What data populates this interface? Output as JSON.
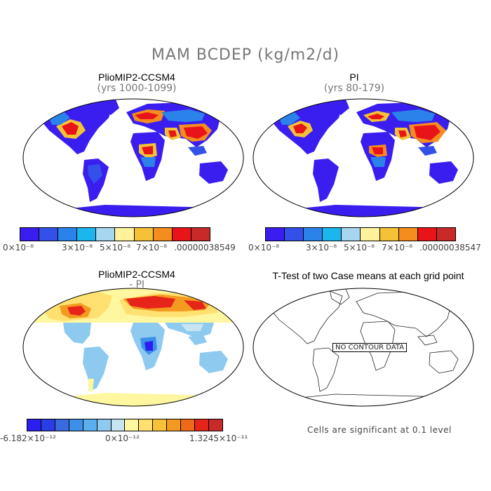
{
  "title": "MAM BCDEP (kg/m2/d)",
  "panels": {
    "p1": {
      "title": "PlioMIP2-CCSM4",
      "subtitle": "(yrs 1000-1099)"
    },
    "p2": {
      "title": "PI",
      "subtitle": "(yrs 80-179)"
    },
    "p3": {
      "title": "PlioMIP2-CCSM4",
      "subtitle": "- PI"
    },
    "p4": {
      "title": "T-Test of two Case means at each grid point",
      "nodata": "NO CONTOUR DATA",
      "note": "Cells are significant at 0.1 level"
    }
  },
  "colorbars": {
    "cb1": {
      "colors": [
        "#3a1ef0",
        "#3350e8",
        "#2a82ea",
        "#1cb6ee",
        "#a6d6f0",
        "#fff29a",
        "#f5c237",
        "#f58c1e",
        "#e8141a",
        "#c82a2a"
      ],
      "labels": [
        "0×10⁻⁸",
        "3×10⁻⁸",
        "5×10⁻⁸",
        "7×10⁻⁸",
        ".00000038549"
      ]
    },
    "cb2": {
      "colors": [
        "#3a1ef0",
        "#3350e8",
        "#2a82ea",
        "#1cb6ee",
        "#a6d6f0",
        "#fff29a",
        "#f5c237",
        "#f58c1e",
        "#e8141a",
        "#c82a2a"
      ],
      "labels": [
        "0×10⁻⁸",
        "3×10⁻⁸",
        "5×10⁻⁸",
        "7×10⁻⁸",
        ".00000038547"
      ]
    },
    "cb3": {
      "colors": [
        "#2a1ef0",
        "#2a3ce6",
        "#3a6ae0",
        "#3d90ea",
        "#5ab0ee",
        "#8ecaf0",
        "#c6e4f2",
        "#fff6a0",
        "#ffe070",
        "#f8c238",
        "#f39a20",
        "#ef6a18",
        "#e6241a",
        "#c82a2a"
      ],
      "labels": [
        "-6.182×10⁻¹²",
        "0×10⁻¹²",
        "1.3245×10⁻¹¹"
      ]
    }
  }
}
